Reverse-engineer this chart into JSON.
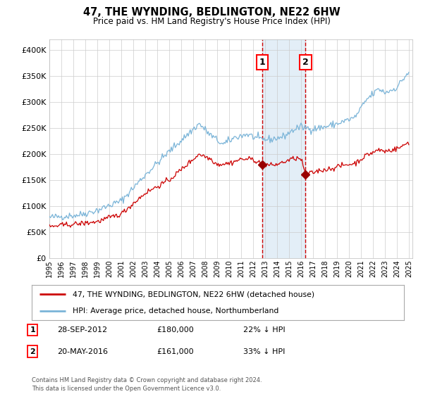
{
  "title": "47, THE WYNDING, BEDLINGTON, NE22 6HW",
  "subtitle": "Price paid vs. HM Land Registry's House Price Index (HPI)",
  "legend_line1": "47, THE WYNDING, BEDLINGTON, NE22 6HW (detached house)",
  "legend_line2": "HPI: Average price, detached house, Northumberland",
  "annotation1_date": "28-SEP-2012",
  "annotation1_price": "£180,000",
  "annotation1_hpi": "22% ↓ HPI",
  "annotation2_date": "20-MAY-2016",
  "annotation2_price": "£161,000",
  "annotation2_hpi": "33% ↓ HPI",
  "footnote": "Contains HM Land Registry data © Crown copyright and database right 2024.\nThis data is licensed under the Open Government Licence v3.0.",
  "hpi_color": "#7ab4d8",
  "price_color": "#cc0000",
  "marker_color": "#990000",
  "vline_color": "#cc0000",
  "shade_color": "#d8e8f5",
  "grid_color": "#cccccc",
  "ylim": [
    0,
    420000
  ],
  "yticks": [
    0,
    50000,
    100000,
    150000,
    200000,
    250000,
    300000,
    350000,
    400000
  ],
  "sale1_year": 2012.747,
  "sale1_price": 180000,
  "sale2_year": 2016.38,
  "sale2_price": 161000,
  "background_color": "#ffffff"
}
